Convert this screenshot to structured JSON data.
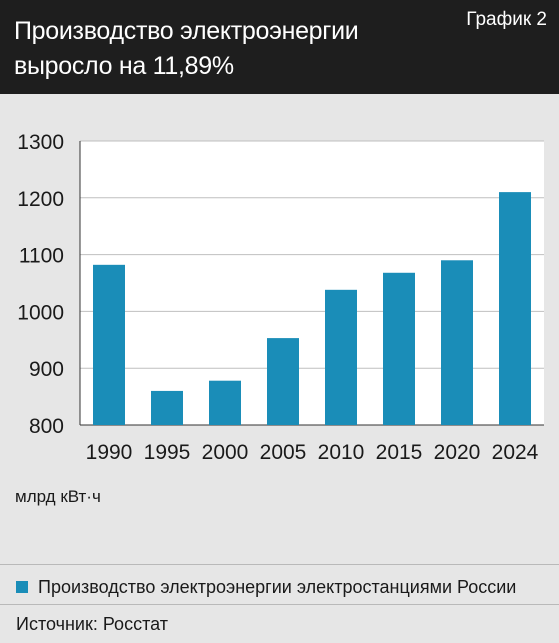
{
  "header": {
    "title_line1": "Производство электроэнергии",
    "title_line2": "выросло на 11,89%",
    "graph_number": "График 2"
  },
  "unit_label": "млрд кВт·ч",
  "legend": {
    "label": "Производство электроэнергии электростанциями России"
  },
  "source": "Источник: Росстат",
  "colors": {
    "bar": "#1a8db8",
    "header_bg": "#1e1e1e",
    "background": "#e6e6e6"
  },
  "chart_data": {
    "type": "bar",
    "categories": [
      "1990",
      "1995",
      "2000",
      "2005",
      "2010",
      "2015",
      "2020",
      "2024"
    ],
    "series": [
      {
        "name": "Производство электроэнергии электростанциями России",
        "values": [
          1082,
          860,
          878,
          953,
          1038,
          1068,
          1090,
          1210
        ]
      }
    ],
    "ylim": [
      800,
      1300
    ],
    "yticks": [
      800,
      900,
      1000,
      1100,
      1200,
      1300
    ],
    "grid": "horizontal",
    "legend_position": "bottom"
  }
}
